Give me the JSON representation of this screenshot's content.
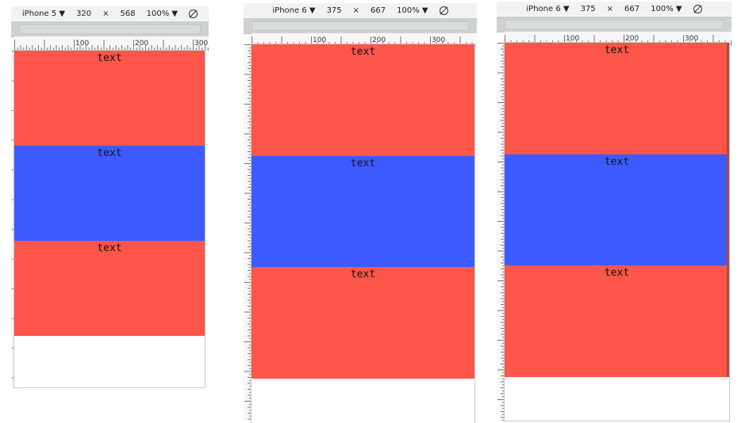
{
  "colors": {
    "red": "#fd554a",
    "blue": "#3d5afe",
    "toolbar": "#f2f2f2",
    "scrollbar": "#cfd3cf"
  },
  "panels": [
    {
      "device": "iPhone 5 ▼",
      "width": "320",
      "times": "×",
      "height": "568",
      "zoom": "100% ▼",
      "ruler_labels": [
        "100",
        "200",
        "300"
      ],
      "blocks": [
        {
          "text": "text",
          "color": "red"
        },
        {
          "text": "text",
          "color": "blue"
        },
        {
          "text": "text",
          "color": "red"
        }
      ]
    },
    {
      "device": "iPhone 6 ▼",
      "width": "375",
      "times": "×",
      "height": "667",
      "zoom": "100% ▼",
      "ruler_labels": [
        "100",
        "200",
        "300"
      ],
      "blocks": [
        {
          "text": "text",
          "color": "red"
        },
        {
          "text": "text",
          "color": "blue"
        },
        {
          "text": "text",
          "color": "red"
        }
      ]
    },
    {
      "device": "iPhone 6 ▼",
      "width": "375",
      "times": "×",
      "height": "667",
      "zoom": "100% ▼",
      "ruler_labels": [
        "100",
        "200",
        "300"
      ],
      "blocks": [
        {
          "text": "text",
          "color": "red"
        },
        {
          "text": "text",
          "color": "blue"
        },
        {
          "text": "text",
          "color": "red"
        }
      ]
    }
  ]
}
